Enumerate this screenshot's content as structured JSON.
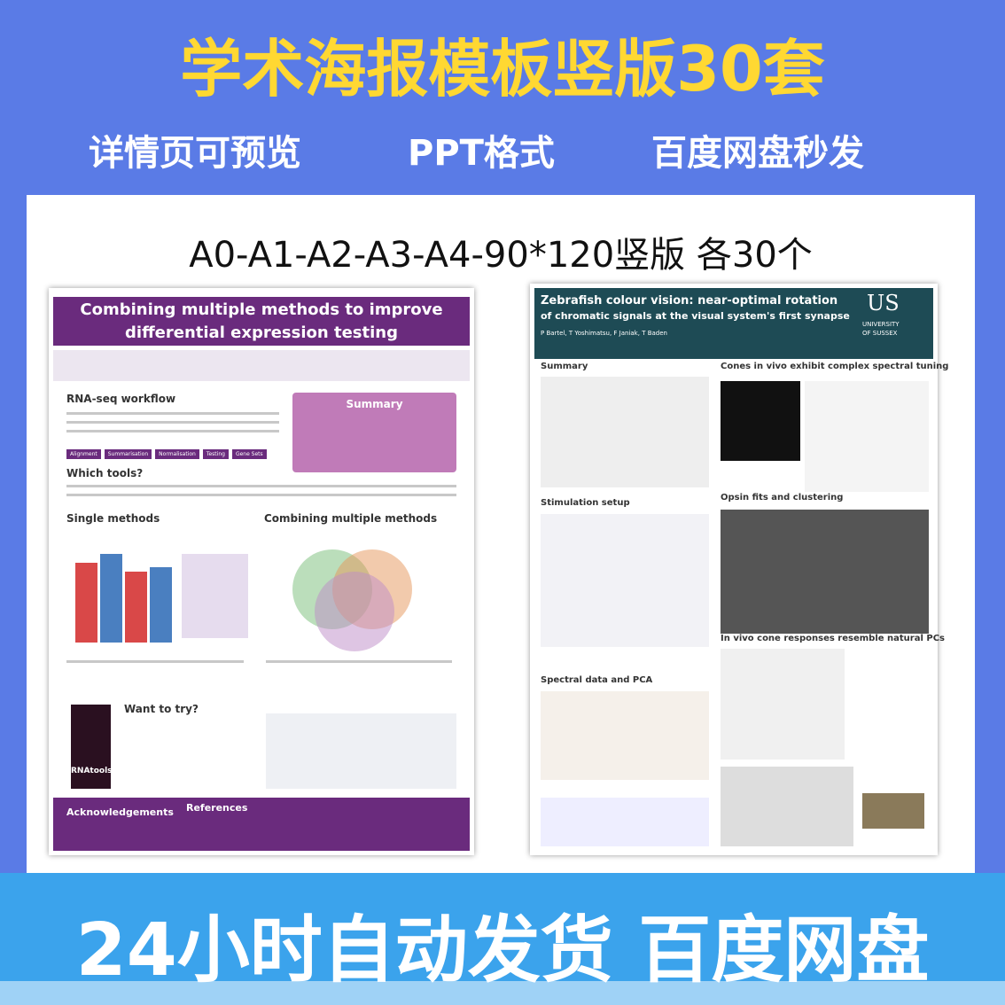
{
  "header": {
    "title": "学术海报模板竖版30套",
    "features": [
      "详情页可预览",
      "PPT格式",
      "百度网盘秒发"
    ]
  },
  "panel": {
    "sizes": "A0-A1-A2-A3-A4-90*120竖版 各30个"
  },
  "posters": [
    {
      "title_lines": [
        "Combining multiple methods to improve",
        "differential expression testing"
      ],
      "sections": [
        "RNA-seq workflow",
        "Summary",
        "Which tools?",
        "Single methods",
        "Combining multiple methods",
        "Want to try?",
        "Acknowledgements",
        "References"
      ],
      "workflow": [
        "Alignment",
        "Summarisation",
        "Normalisation",
        "Testing",
        "Gene Sets"
      ],
      "logo": "RNAtools"
    },
    {
      "title_lines": [
        "Zebrafish colour vision: near-optimal rotation",
        "of chromatic signals at the visual system's first synapse"
      ],
      "authors": "P Bartel, T Yoshimatsu, F Janiak, T Baden",
      "university": [
        "US",
        "UNIVERSITY",
        "OF SUSSEX"
      ],
      "sections": [
        "Summary",
        "Cones in vivo exhibit complex spectral tuning",
        "Stimulation setup",
        "Opsin fits and clustering",
        "Spectral data and PCA",
        "In vivo cone responses resemble natural PCs"
      ]
    }
  ],
  "footer": {
    "slogan": "24小时自动发货 百度网盘"
  }
}
